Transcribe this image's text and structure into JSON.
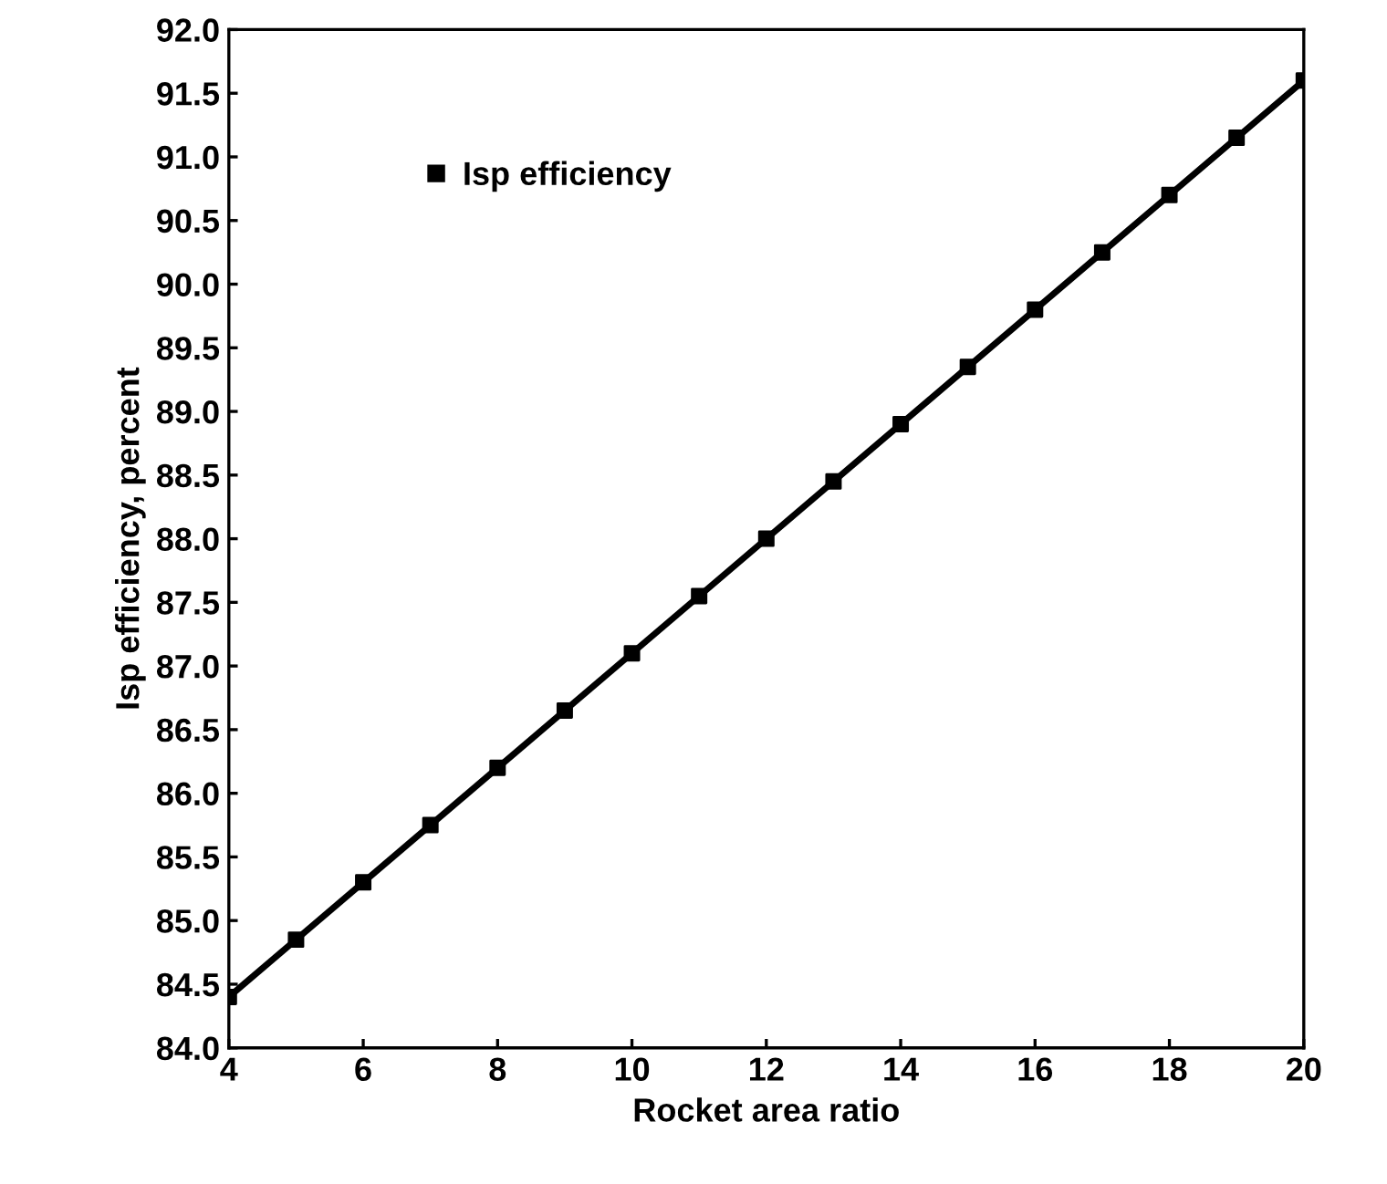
{
  "chart_data": {
    "type": "scatter",
    "xlabel": "Rocket area ratio",
    "ylabel": "Isp efficiency, percent",
    "x": [
      4,
      5,
      6,
      7,
      8,
      9,
      10,
      11,
      12,
      13,
      14,
      15,
      16,
      17,
      18,
      19,
      20
    ],
    "series": [
      {
        "name": "Isp efficiency",
        "color": "#000000",
        "marker": "square",
        "values": [
          84.4,
          84.85,
          85.3,
          85.75,
          86.2,
          86.65,
          87.1,
          87.55,
          88.0,
          88.45,
          88.9,
          89.35,
          89.8,
          90.25,
          90.7,
          91.15,
          91.6
        ]
      },
      {
        "type": "line",
        "color": "#000000",
        "line_style": "solid",
        "marker": "none",
        "x": [
          4,
          20
        ],
        "values": [
          84.4,
          91.6
        ]
      }
    ],
    "xlim": [
      4,
      20
    ],
    "xticks": [
      4,
      6,
      8,
      10,
      12,
      14,
      16,
      18,
      20
    ],
    "ylim": [
      84.0,
      92.0
    ],
    "yticks": [
      {
        "value": 84.0,
        "label": "84.0"
      },
      {
        "value": 84.5,
        "label": "84.5"
      },
      {
        "value": 85.0,
        "label": "85.0"
      },
      {
        "value": 85.5,
        "label": "85.5"
      },
      {
        "value": 86.0,
        "label": "86.0"
      },
      {
        "value": 86.5,
        "label": "86.5"
      },
      {
        "value": 87.0,
        "label": "87.0"
      },
      {
        "value": 87.5,
        "label": "87.5"
      },
      {
        "value": 88.0,
        "label": "88.0"
      },
      {
        "value": 88.5,
        "label": "88.5"
      },
      {
        "value": 89.0,
        "label": "89.0"
      },
      {
        "value": 89.5,
        "label": "89.5"
      },
      {
        "value": 90.0,
        "label": "90.0"
      },
      {
        "value": 90.5,
        "label": "90.5"
      },
      {
        "value": 91.0,
        "label": "91.0"
      },
      {
        "value": 91.5,
        "label": "91.5"
      },
      {
        "value": 92.0,
        "label": "92.0"
      }
    ],
    "grid": false,
    "legend": "top left"
  }
}
